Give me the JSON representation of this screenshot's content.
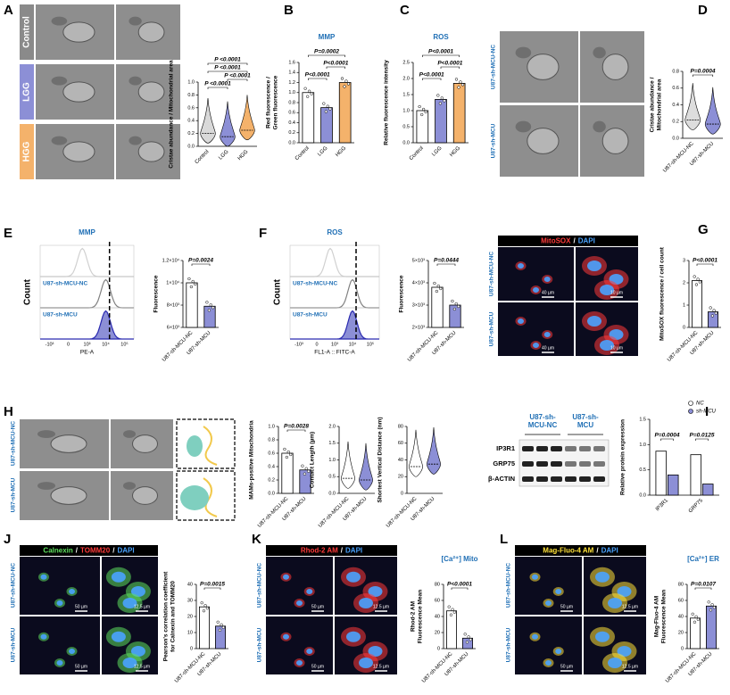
{
  "panels": [
    {
      "letter": "A",
      "row_labels": [
        "Control",
        "LGG",
        "HGG"
      ],
      "row_colors": [
        "#8a8a8a",
        "#8c8fd6",
        "#f4b26b"
      ]
    },
    {
      "letter": "B"
    },
    {
      "letter": "C"
    },
    {
      "letter": "D",
      "row_labels": [
        "U87-sh-MCU-NC",
        "U87-sh-MCU"
      ]
    },
    {
      "letter": "E"
    },
    {
      "letter": "F"
    },
    {
      "letter": "G",
      "row_labels": [
        "U87-sh-MCU-NC",
        "U87-sh-MCU"
      ],
      "stain": [
        {
          "text": "MitoSOX",
          "color": "#ff3b3b"
        },
        {
          "text": "/",
          "color": "#ffffff"
        },
        {
          "text": "DAPI",
          "color": "#4aa3ff"
        }
      ],
      "scale_bars": [
        "40 µm",
        "10 µm",
        "40 µm",
        "10 µm"
      ]
    },
    {
      "letter": "H",
      "row_labels": [
        "U87-sh-MCU-NC",
        "U87-sh-MCU"
      ]
    },
    {
      "letter": "I",
      "group_labels": [
        [
          "U87-sh-",
          "MCU-NC"
        ],
        [
          "U87-sh-",
          "MCU"
        ]
      ],
      "bands": [
        "IP3R1",
        "GRP75",
        "β-ACTIN"
      ]
    },
    {
      "letter": "J",
      "row_labels": [
        "U87-sh-MCU-NC",
        "U87-sh-MCU"
      ],
      "stain": [
        {
          "text": "Calnexin",
          "color": "#5fe05f"
        },
        {
          "text": "/",
          "color": "#ffffff"
        },
        {
          "text": "TOMM20",
          "color": "#ff3b3b"
        },
        {
          "text": "/",
          "color": "#ffffff"
        },
        {
          "text": "DAPI",
          "color": "#4aa3ff"
        }
      ],
      "scale_bars": [
        "50 µm",
        "12.5 µm",
        "50 µm",
        "12.5 µm"
      ]
    },
    {
      "letter": "K",
      "row_labels": [
        "U87-sh-MCU-NC",
        "U87-sh-MCU"
      ],
      "stain": [
        {
          "text": "Rhod-2 AM",
          "color": "#ff3b3b"
        },
        {
          "text": "/",
          "color": "#ffffff"
        },
        {
          "text": "DAPI",
          "color": "#4aa3ff"
        }
      ],
      "scale_bars": [
        "50 µm",
        "12.5 µm",
        "50 µm",
        "12.5 µm"
      ]
    },
    {
      "letter": "L",
      "row_labels": [
        "U87-sh-MCU-NC",
        "U87-sh-MCU"
      ],
      "stain": [
        {
          "text": "Mag-Fluo-4 AM",
          "color": "#ffe23a"
        },
        {
          "text": "/",
          "color": "#ffffff"
        },
        {
          "text": "DAPI",
          "color": "#4aa3ff"
        }
      ],
      "scale_bars": [
        "50 µm",
        "12.5 µm",
        "50 µm",
        "12.5 µm"
      ]
    }
  ],
  "chart_data": [
    {
      "type": "violin",
      "ylabel": "Cristae abundance / Mitochondrial area",
      "categories": [
        "Control",
        "LGG",
        "HGG"
      ],
      "values": [
        0.2,
        0.15,
        0.25
      ],
      "colors": [
        "#d9d9d9",
        "#8c8fd6",
        "#f4b26b"
      ],
      "ylim": [
        0,
        1
      ],
      "yticks": [
        {
          "value": 0,
          "label": "0.0"
        },
        0.2,
        0.4,
        0.6,
        0.8,
        {
          "value": 1,
          "label": "1.0"
        }
      ],
      "annotations": [
        "P <0.0001",
        "P <0.0001",
        "P <0.0001",
        "P <0.0001"
      ]
    },
    {
      "type": "bar",
      "title": "MMP",
      "ylabel": [
        "Red fluorescence /",
        "Green fluorescence"
      ],
      "categories": [
        "Control",
        "LGG",
        "HGG"
      ],
      "values": [
        1.0,
        0.7,
        1.2
      ],
      "colors": [
        "#ffffff",
        "#8c8fd6",
        "#f4b26b"
      ],
      "ylim": [
        0,
        1.6
      ],
      "yticks": [
        {
          "value": 0,
          "label": "0.0"
        },
        0.2,
        0.4,
        0.6,
        0.8,
        {
          "value": 1,
          "label": "1.0"
        },
        1.2,
        1.4,
        1.6
      ],
      "annotations": [
        "P<0.0001",
        "P<0.0001",
        "P=0.0002"
      ]
    },
    {
      "type": "bar",
      "title": "ROS",
      "ylabel": "Relative fluorescence intensity",
      "categories": [
        "Control",
        "LGG",
        "HGG"
      ],
      "values": [
        1.0,
        1.35,
        1.85
      ],
      "colors": [
        "#ffffff",
        "#8c8fd6",
        "#f4b26b"
      ],
      "ylim": [
        0,
        2.5
      ],
      "yticks": [
        {
          "value": 0,
          "label": "0.0"
        },
        0.5,
        {
          "value": 1,
          "label": "1.0"
        },
        1.5,
        {
          "value": 2,
          "label": "2.0"
        },
        2.5
      ],
      "annotations": [
        "P<0.0001",
        "P<0.0001",
        "P<0.0001"
      ]
    },
    {
      "type": "violin",
      "ylabel": [
        "Cristae abundance /",
        "Mitochondrial area"
      ],
      "categories": [
        "U87-sh-MCU-NC",
        "U87-sh-MCU"
      ],
      "values": [
        0.22,
        0.17
      ],
      "colors": [
        "#dddddd",
        "#8c8fd6"
      ],
      "ylim": [
        0,
        0.8
      ],
      "yticks": [
        {
          "value": 0,
          "label": "0.0"
        },
        0.2,
        0.4,
        0.6,
        0.8
      ],
      "annotations": [
        "P=0.0004"
      ]
    },
    {
      "type": "flow",
      "title": "MMP",
      "xlabel": "PE-A",
      "ylabel": "Count",
      "xtick_labels": [
        "-10³",
        "0",
        "10³",
        "10⁴",
        "10⁵"
      ],
      "series": [
        {
          "name": "U87-sh-MCU-NC",
          "color": "#808080"
        },
        {
          "name": "U87-sh-MCU",
          "color": "#2a2ab0"
        }
      ]
    },
    {
      "type": "bar",
      "ylabel": "Fluorescence",
      "categories": [
        "U87-sh-MCU-NC",
        "U87-sh-MCU"
      ],
      "values": [
        10000,
        7900
      ],
      "colors": [
        "#ffffff",
        "#8c8fd6"
      ],
      "ylim": [
        6000,
        12000
      ],
      "yticks": [
        {
          "value": 6000,
          "label": "6×10³"
        },
        {
          "value": 8000,
          "label": "8×10³"
        },
        {
          "value": 10000,
          "label": "1×10⁴"
        },
        {
          "value": 12000,
          "label": "1.2×10⁴"
        }
      ],
      "annotations": [
        "P=0.0024"
      ]
    },
    {
      "type": "flow",
      "title": "ROS",
      "xlabel": "FL1-A :: FITC-A",
      "ylabel": "Count",
      "xtick_labels": [
        "-10³",
        "0",
        "10³",
        "10⁴",
        "10⁵"
      ],
      "series": [
        {
          "name": "U87-sh-MCU-NC",
          "color": "#808080"
        },
        {
          "name": "U87-sh-MCU",
          "color": "#2a2ab0"
        }
      ]
    },
    {
      "type": "bar",
      "ylabel": "Fluorescence",
      "categories": [
        "U87-sh-MCU-NC",
        "U87-sh-MCU"
      ],
      "values": [
        3800,
        3000
      ],
      "colors": [
        "#ffffff",
        "#8c8fd6"
      ],
      "ylim": [
        2000,
        5000
      ],
      "yticks": [
        {
          "value": 2000,
          "label": "2×10³"
        },
        {
          "value": 3000,
          "label": "3×10³"
        },
        {
          "value": 4000,
          "label": "4×10³"
        },
        {
          "value": 5000,
          "label": "5×10³"
        }
      ],
      "annotations": [
        "P=0.0444"
      ]
    },
    {
      "type": "bar",
      "ylabel": "MitoSOX fluorescence / cell count",
      "categories": [
        "U87-sh-MCU-NC",
        "U87-sh-MCU"
      ],
      "values": [
        2.1,
        0.7
      ],
      "colors": [
        "#ffffff",
        "#8c8fd6"
      ],
      "ylim": [
        0,
        3
      ],
      "yticks": [
        0,
        1,
        2,
        3
      ],
      "annotations": [
        "P<0.0001"
      ]
    },
    {
      "type": "bar",
      "ylabel": "MAMs-positive Mitochondria",
      "categories": [
        "U87-sh-MCU-NC",
        "U87-sh-MCU"
      ],
      "values": [
        0.6,
        0.35
      ],
      "colors": [
        "#ffffff",
        "#8c8fd6"
      ],
      "ylim": [
        0,
        1
      ],
      "yticks": [
        {
          "value": 0,
          "label": "0.0"
        },
        0.2,
        0.4,
        0.6,
        0.8,
        {
          "value": 1,
          "label": "1.0"
        }
      ],
      "annotations": [
        "P=0.0028"
      ]
    },
    {
      "type": "violin",
      "ylabel": "Contact Length (µm)",
      "categories": [
        "U87-sh-MCU-NC",
        "U87-sh-MCU"
      ],
      "values": [
        0.45,
        0.4
      ],
      "colors": [
        "#ffffff",
        "#8c8fd6"
      ],
      "ylim": [
        0,
        2
      ],
      "yticks": [
        {
          "value": 0,
          "label": "0.0"
        },
        0.5,
        {
          "value": 1,
          "label": "1.0"
        },
        1.5,
        {
          "value": 2,
          "label": "2.0"
        }
      ]
    },
    {
      "type": "violin",
      "ylabel": "Shortest Vertical Distance (nm)",
      "categories": [
        "U87-sh-MCU-NC",
        "U87-sh-MCU"
      ],
      "values": [
        32,
        35
      ],
      "colors": [
        "#ffffff",
        "#8c8fd6"
      ],
      "ylim": [
        0,
        80
      ],
      "yticks": [
        0,
        20,
        40,
        60,
        80
      ]
    },
    {
      "type": "grouped_bar",
      "ylabel": "Relative protein expression",
      "categories": [
        "IP3R1",
        "GRP75"
      ],
      "series": [
        {
          "name": "NC",
          "color": "#ffffff",
          "values": [
            0.87,
            0.8
          ]
        },
        {
          "name": "sh-MCU",
          "color": "#8c8fd6",
          "values": [
            0.4,
            0.22
          ]
        }
      ],
      "ylim": [
        0,
        1.5
      ],
      "yticks": [
        {
          "value": 0,
          "label": "0.0"
        },
        0.5,
        {
          "value": 1,
          "label": "1.0"
        },
        1.5
      ],
      "annotations": [
        "P=0.0004",
        "P=0.0125"
      ],
      "legend": "top-right"
    },
    {
      "type": "bar",
      "ylabel": [
        "Pearson's correlation coefficient",
        "for Calnexin and TOMM20"
      ],
      "categories": [
        "U87-sh-MCU-NC",
        "U87-sh-MCU"
      ],
      "values": [
        26,
        14
      ],
      "colors": [
        "#ffffff",
        "#8c8fd6"
      ],
      "ylim": [
        0,
        40
      ],
      "yticks": [
        0,
        10,
        20,
        30,
        40
      ],
      "annotations": [
        "P=0.0015"
      ]
    },
    {
      "type": "bar",
      "title": "[Ca²⁺] Mito",
      "ylabel": [
        "Rhod-2 AM",
        "Fluorescence Mean"
      ],
      "categories": [
        "U87-sh-MCU-NC",
        "U87-sh-MCU"
      ],
      "values": [
        47,
        13
      ],
      "colors": [
        "#ffffff",
        "#8c8fd6"
      ],
      "ylim": [
        0,
        80
      ],
      "yticks": [
        0,
        20,
        40,
        60,
        80
      ],
      "annotations": [
        "P<0.0001"
      ]
    },
    {
      "type": "bar",
      "title": "[Ca²⁺] ER",
      "ylabel": [
        "Mag-Fluo-4 AM",
        "Fluorescence Mean"
      ],
      "categories": [
        "U87-sh-MCU-NC",
        "U87-sh-MCU"
      ],
      "values": [
        38,
        53
      ],
      "colors": [
        "#ffffff",
        "#8c8fd6"
      ],
      "ylim": [
        0,
        80
      ],
      "yticks": [
        0,
        20,
        40,
        60,
        80
      ],
      "annotations": [
        "P=0.0107"
      ]
    }
  ]
}
